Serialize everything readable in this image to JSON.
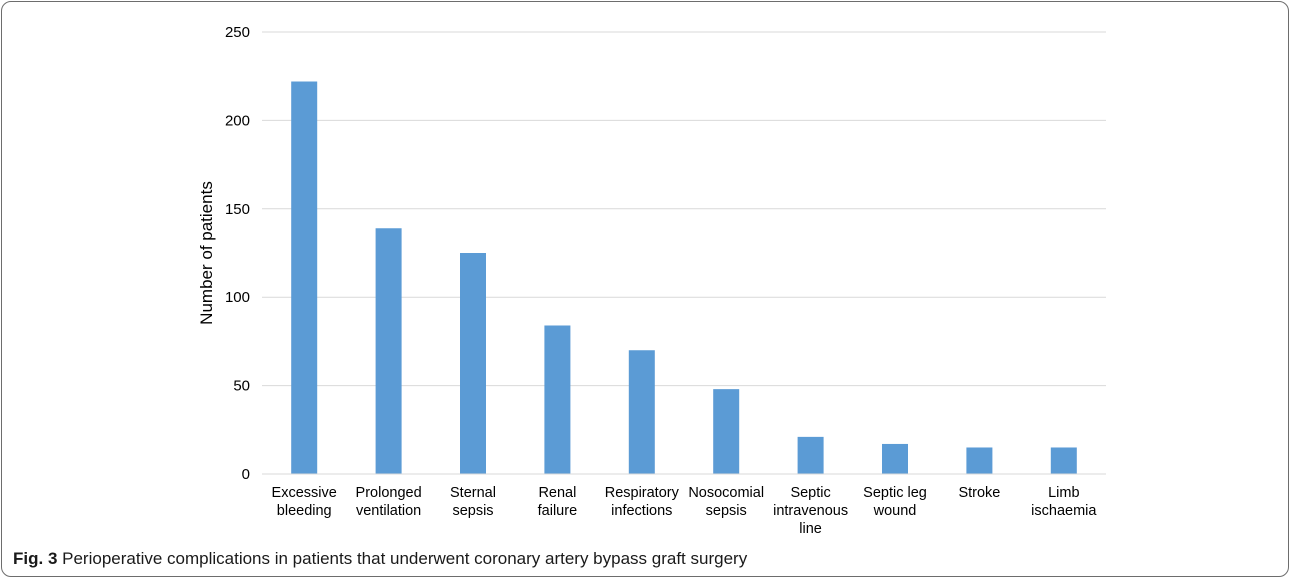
{
  "chart_data": {
    "type": "bar",
    "categories": [
      [
        "Excessive",
        "bleeding"
      ],
      [
        "Prolonged",
        "ventilation"
      ],
      [
        "Sternal",
        "sepsis"
      ],
      [
        "Renal",
        "failure"
      ],
      [
        "Respiratory",
        "infections"
      ],
      [
        "Nosocomial",
        "sepsis"
      ],
      [
        "Septic",
        "intravenous",
        "line"
      ],
      [
        "Septic leg",
        "wound"
      ],
      [
        "Stroke"
      ],
      [
        "Limb",
        "ischaemia"
      ]
    ],
    "values": [
      222,
      139,
      125,
      84,
      70,
      48,
      21,
      17,
      15,
      15
    ],
    "ylabel": "Number of patients",
    "xlabel": "",
    "ylim": [
      0,
      250
    ],
    "yticks": [
      0,
      50,
      100,
      150,
      200,
      250
    ],
    "grid": true,
    "bar_color": "#5b9bd5",
    "grid_color": "#d9d9d9"
  },
  "caption": {
    "label": "Fig. 3",
    "text": " Perioperative complications in patients that underwent coronary artery bypass graft surgery"
  }
}
